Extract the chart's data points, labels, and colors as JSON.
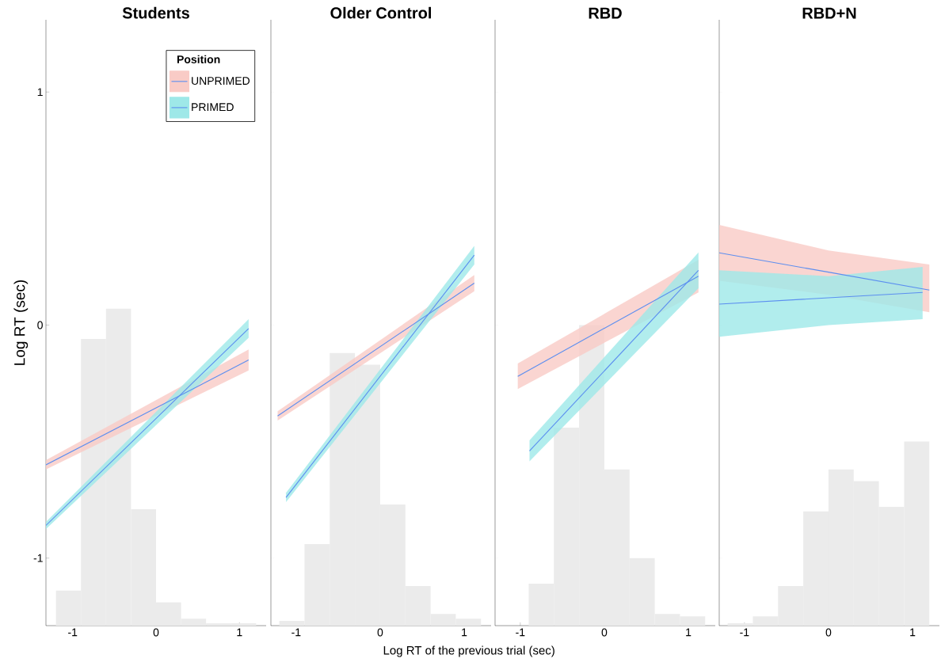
{
  "chart_data": [
    {
      "type": "line",
      "title": "Students",
      "ylabel": "Log RT (sec)",
      "legend_title": "Position",
      "legend": "top right",
      "xlim": [
        -1.32,
        1.32
      ],
      "ylim": [
        -1.29,
        1.31
      ],
      "xticks": [
        -1,
        0,
        1
      ],
      "yticks": [
        -1,
        0,
        1
      ],
      "series": [
        {
          "type": "histogram",
          "color": "#ebebeb",
          "bins": [
            -1.2,
            -0.9,
            -0.6,
            -0.3,
            0,
            0.3,
            0.6,
            0.9,
            1.2
          ],
          "values": [
            0.15,
            1.23,
            1.36,
            0.5,
            0.1,
            0.03,
            0.01,
            0.01
          ],
          "base": [
            -1.29,
            -1.29,
            -1.29,
            -1.29,
            -1.29,
            -1.29,
            -1.29,
            -1.29
          ]
        },
        {
          "name": "UNPRIMED",
          "color": "#5b8ef0",
          "x": [
            -1.32,
            1.11
          ],
          "values": [
            -0.6,
            -0.15
          ],
          "lower": [
            -0.62,
            -0.195
          ],
          "upper": [
            -0.58,
            -0.105
          ]
        },
        {
          "name": "PRIMED",
          "color": "#5b8ef0",
          "x": [
            -1.32,
            1.11
          ],
          "values": [
            -0.86,
            -0.015
          ],
          "lower": [
            -0.875,
            -0.055
          ],
          "upper": [
            -0.845,
            0.025
          ]
        }
      ]
    },
    {
      "type": "line",
      "title": "Older Control",
      "xlabel": "Log RT of the previous trial (sec)",
      "tick_labels": "x",
      "xlim": [
        -1.3,
        1.32
      ],
      "ylim": [
        -1.29,
        1.31
      ],
      "xticks": [
        -1,
        0,
        1
      ],
      "yticks": [
        -1,
        0,
        1
      ],
      "series": [
        {
          "type": "histogram",
          "color": "#ebebeb",
          "bins": [
            -1.2,
            -0.9,
            -0.6,
            -0.3,
            0,
            0.3,
            0.6,
            0.9,
            1.2
          ],
          "values": [
            0.02,
            0.35,
            1.17,
            1.12,
            0.52,
            0.17,
            0.05,
            0.03
          ],
          "base": [
            -1.29,
            -1.29,
            -1.29,
            -1.29,
            -1.29,
            -1.29,
            -1.29,
            -1.29
          ]
        },
        {
          "color": "#5b8ef0",
          "x": [
            -1.22,
            1.12
          ],
          "values": [
            -0.39,
            0.18
          ],
          "lower": [
            -0.41,
            0.145
          ],
          "upper": [
            -0.37,
            0.215
          ]
        },
        {
          "color": "#5b8ef0",
          "x": [
            -1.12,
            1.12
          ],
          "values": [
            -0.74,
            0.3
          ],
          "lower": [
            -0.76,
            0.26
          ],
          "upper": [
            -0.72,
            0.34
          ]
        }
      ]
    },
    {
      "type": "line",
      "title": "RBD",
      "tick_labels": "x",
      "xlim": [
        -1.3,
        1.32
      ],
      "ylim": [
        -1.29,
        1.31
      ],
      "xticks": [
        -1,
        0,
        1
      ],
      "yticks": [
        -1,
        0,
        1
      ],
      "series": [
        {
          "type": "histogram",
          "color": "#ebebeb",
          "bins": [
            -0.9,
            -0.6,
            -0.3,
            0,
            0.3,
            0.6,
            0.9,
            1.2
          ],
          "values": [
            0.18,
            0.85,
            1.29,
            0.67,
            0.29,
            0.05,
            0.04
          ],
          "base": [
            -1.29,
            -1.29,
            -1.29,
            -1.29,
            -1.29,
            -1.29,
            -1.29
          ]
        },
        {
          "color": "#5b8ef0",
          "x": [
            -1.03,
            1.12
          ],
          "values": [
            -0.22,
            0.21
          ],
          "lower": [
            -0.275,
            0.14
          ],
          "upper": [
            -0.165,
            0.28
          ]
        },
        {
          "color": "#5b8ef0",
          "x": [
            -0.89,
            1.12
          ],
          "values": [
            -0.54,
            0.235
          ],
          "lower": [
            -0.585,
            0.158
          ],
          "upper": [
            -0.495,
            0.312
          ]
        }
      ]
    },
    {
      "type": "line",
      "title": "RBD+N",
      "tick_labels": "x",
      "xlim": [
        -1.3,
        1.32
      ],
      "ylim": [
        -1.29,
        1.31
      ],
      "xticks": [
        -1,
        0,
        1
      ],
      "yticks": [
        -1,
        0,
        1
      ],
      "series": [
        {
          "type": "histogram",
          "color": "#ebebeb",
          "bins": [
            -1.2,
            -0.9,
            -0.6,
            -0.3,
            0,
            0.3,
            0.6,
            0.9,
            1.2
          ],
          "values": [
            0.01,
            0.04,
            0.17,
            0.49,
            0.67,
            0.62,
            0.51,
            0.79
          ],
          "base": [
            -1.29,
            -1.29,
            -1.29,
            -1.29,
            -1.29,
            -1.29,
            -1.29,
            -1.29
          ]
        },
        {
          "color": "#5b8ef0",
          "x": [
            -1.3,
            0,
            1.2
          ],
          "values": [
            0.31,
            0.227,
            0.15
          ],
          "lower": [
            0.19,
            0.13,
            0.055
          ],
          "upper": [
            0.43,
            0.32,
            0.26
          ]
        },
        {
          "color": "#5b8ef0",
          "x": [
            -1.3,
            0,
            1.12
          ],
          "values": [
            0.09,
            0.117,
            0.14
          ],
          "lower": [
            -0.05,
            0.0,
            0.025
          ],
          "upper": [
            0.235,
            0.21,
            0.25
          ]
        }
      ]
    }
  ]
}
